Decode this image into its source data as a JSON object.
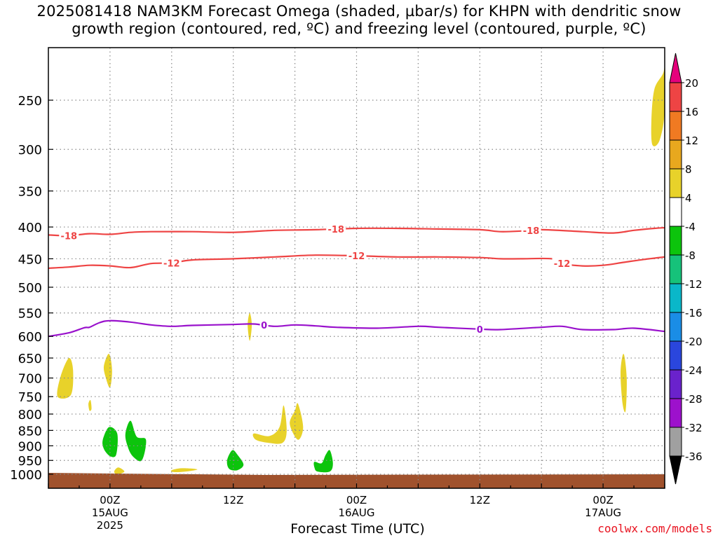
{
  "title": {
    "line1": "2025081418 NAM3KM Forecast Omega (shaded, µbar/s) for KHPN with dendritic snow",
    "line2": "growth region (contoured, red, ºC) and freezing level (contoured, purple, ºC)"
  },
  "credit": "coolwx.com/models",
  "chart_data": {
    "type": "heatmap",
    "xlabel": "Forecast Time (UTC)",
    "x_ticks": [
      {
        "label": "00Z",
        "sub": "15AUG",
        "sub2": "2025",
        "hour": 6
      },
      {
        "label": "12Z",
        "sub": "",
        "sub2": "",
        "hour": 18
      },
      {
        "label": "00Z",
        "sub": "16AUG",
        "sub2": "",
        "hour": 30
      },
      {
        "label": "12Z",
        "sub": "",
        "sub2": "",
        "hour": 42
      },
      {
        "label": "00Z",
        "sub": "17AUG",
        "sub2": "",
        "hour": 54
      }
    ],
    "x_range_hours": [
      0,
      60
    ],
    "y_ticks": [
      250,
      300,
      350,
      400,
      450,
      500,
      550,
      600,
      650,
      700,
      750,
      800,
      850,
      900,
      950,
      1000
    ],
    "y_range_hPa": [
      200,
      1030
    ],
    "y_scale": "log-pressure",
    "grid": true,
    "colorbar": {
      "labels": [
        "20",
        "16",
        "12",
        "8",
        "4",
        "-4",
        "-8",
        "-12",
        "-16",
        "-20",
        "-24",
        "-28",
        "-32",
        "-36"
      ],
      "colors": [
        "#ee4444",
        "#f07a22",
        "#e8a81e",
        "#e8d22a",
        "#ffffff",
        "#0cc40c",
        "#16c27a",
        "#0ab7c9",
        "#1a8de6",
        "#2a46dd",
        "#6a22cc",
        "#9d11cc",
        "#a0a0a0"
      ],
      "top_color": "#e5007c",
      "bottom_color": "#000000"
    },
    "contours": [
      {
        "name": "-18",
        "color": "#ee4444",
        "label": "-18",
        "points": [
          [
            0,
            412
          ],
          [
            2,
            413
          ],
          [
            4,
            410
          ],
          [
            6,
            411
          ],
          [
            8,
            408
          ],
          [
            10,
            407
          ],
          [
            14,
            407
          ],
          [
            18,
            408
          ],
          [
            22,
            405
          ],
          [
            26,
            404
          ],
          [
            30,
            402
          ],
          [
            34,
            402
          ],
          [
            38,
            403
          ],
          [
            42,
            404
          ],
          [
            44,
            407
          ],
          [
            46,
            406
          ],
          [
            48,
            404
          ],
          [
            52,
            407
          ],
          [
            55,
            409
          ],
          [
            57,
            405
          ],
          [
            59,
            402
          ],
          [
            60,
            401
          ]
        ],
        "label_hours": [
          2,
          28,
          47
        ]
      },
      {
        "name": "-12",
        "color": "#ee4444",
        "label": "-12",
        "points": [
          [
            0,
            466
          ],
          [
            2,
            464
          ],
          [
            4,
            461
          ],
          [
            6,
            462
          ],
          [
            8,
            465
          ],
          [
            10,
            458
          ],
          [
            12,
            457
          ],
          [
            14,
            452
          ],
          [
            18,
            450
          ],
          [
            22,
            447
          ],
          [
            26,
            444
          ],
          [
            30,
            445
          ],
          [
            34,
            447
          ],
          [
            38,
            447
          ],
          [
            42,
            448
          ],
          [
            44,
            450
          ],
          [
            46,
            450
          ],
          [
            49,
            450
          ],
          [
            50,
            458
          ],
          [
            52,
            462
          ],
          [
            54,
            461
          ],
          [
            56,
            456
          ],
          [
            58,
            451
          ],
          [
            60,
            447
          ]
        ],
        "label_hours": [
          12,
          30,
          50
        ]
      },
      {
        "name": "0",
        "color": "#9911cc",
        "label": "0",
        "points": [
          [
            0,
            600
          ],
          [
            2,
            592
          ],
          [
            3.5,
            581
          ],
          [
            4,
            580
          ],
          [
            5,
            570
          ],
          [
            6,
            566
          ],
          [
            8,
            569
          ],
          [
            10,
            575
          ],
          [
            12,
            578
          ],
          [
            14,
            576
          ],
          [
            18,
            574
          ],
          [
            20,
            573
          ],
          [
            22,
            578
          ],
          [
            24,
            575
          ],
          [
            26,
            577
          ],
          [
            28,
            580
          ],
          [
            32,
            582
          ],
          [
            36,
            578
          ],
          [
            38,
            580
          ],
          [
            42,
            584
          ],
          [
            44,
            585
          ],
          [
            48,
            580
          ],
          [
            50,
            578
          ],
          [
            52,
            585
          ],
          [
            55,
            585
          ],
          [
            57,
            582
          ],
          [
            60,
            589
          ]
        ],
        "label_hours": [
          21,
          42
        ]
      }
    ],
    "omega_blobs": [
      {
        "value": 5,
        "color": "#e8d22a",
        "points": [
          [
            0.9,
            750
          ],
          [
            1.2,
            695
          ],
          [
            2.0,
            650
          ],
          [
            2.4,
            680
          ],
          [
            2.2,
            745
          ]
        ]
      },
      {
        "value": 5,
        "color": "#e8d22a",
        "points": [
          [
            5.4,
            670
          ],
          [
            5.9,
            640
          ],
          [
            6.2,
            680
          ],
          [
            6.0,
            725
          ],
          [
            5.6,
            700
          ]
        ]
      },
      {
        "value": 5,
        "color": "#e8d22a",
        "points": [
          [
            3.9,
            770
          ],
          [
            4.1,
            760
          ],
          [
            4.2,
            785
          ],
          [
            4.0,
            790
          ]
        ]
      },
      {
        "value": 5,
        "color": "#e8d22a",
        "points": [
          [
            6.4,
            990
          ],
          [
            6.8,
            975
          ],
          [
            7.4,
            990
          ],
          [
            6.7,
            1000
          ]
        ]
      },
      {
        "value": 5,
        "color": "#e8d22a",
        "points": [
          [
            12.0,
            985
          ],
          [
            13.0,
            978
          ],
          [
            14.5,
            982
          ],
          [
            13.4,
            990
          ],
          [
            12.2,
            992
          ]
        ]
      },
      {
        "value": 5,
        "color": "#e8d22a",
        "points": [
          [
            19.4,
            575
          ],
          [
            19.6,
            550
          ],
          [
            19.8,
            575
          ],
          [
            19.6,
            610
          ]
        ]
      },
      {
        "value": 5,
        "color": "#e8d22a",
        "points": [
          [
            20.0,
            860
          ],
          [
            21.5,
            868
          ],
          [
            22.5,
            840
          ],
          [
            22.9,
            775
          ],
          [
            23.2,
            850
          ],
          [
            22.8,
            890
          ],
          [
            21.4,
            890
          ],
          [
            20.2,
            880
          ]
        ]
      },
      {
        "value": 5,
        "color": "#e8d22a",
        "points": [
          [
            23.5,
            830
          ],
          [
            24.0,
            790
          ],
          [
            24.3,
            770
          ],
          [
            24.8,
            840
          ],
          [
            24.3,
            880
          ]
        ]
      },
      {
        "value": 5,
        "color": "#e8d22a",
        "points": [
          [
            58.7,
            270
          ],
          [
            59.0,
            240
          ],
          [
            59.9,
            225
          ],
          [
            60,
            210
          ],
          [
            60,
            260
          ],
          [
            59.5,
            290
          ],
          [
            58.8,
            295
          ]
        ]
      },
      {
        "value": 5,
        "color": "#e8d22a",
        "points": [
          [
            55.7,
            685
          ],
          [
            56.0,
            640
          ],
          [
            56.3,
            700
          ],
          [
            56.2,
            790
          ],
          [
            55.9,
            770
          ]
        ]
      },
      {
        "value": -6,
        "color": "#0cc40c",
        "points": [
          [
            5.3,
            880
          ],
          [
            5.9,
            840
          ],
          [
            6.7,
            860
          ],
          [
            6.6,
            930
          ],
          [
            6.0,
            935
          ],
          [
            5.4,
            910
          ]
        ]
      },
      {
        "value": -6,
        "color": "#0cc40c",
        "points": [
          [
            7.5,
            860
          ],
          [
            8.0,
            820
          ],
          [
            8.6,
            870
          ],
          [
            9.5,
            880
          ],
          [
            9.1,
            950
          ],
          [
            8.2,
            935
          ],
          [
            7.7,
            900
          ]
        ]
      },
      {
        "value": -6,
        "color": "#0cc40c",
        "points": [
          [
            17.4,
            950
          ],
          [
            17.9,
            915
          ],
          [
            18.4,
            930
          ],
          [
            19.0,
            965
          ],
          [
            18.4,
            985
          ],
          [
            17.6,
            980
          ]
        ]
      },
      {
        "value": -6,
        "color": "#0cc40c",
        "points": [
          [
            25.9,
            955
          ],
          [
            26.6,
            960
          ],
          [
            27.0,
            930
          ],
          [
            27.4,
            915
          ],
          [
            27.7,
            960
          ],
          [
            27.4,
            990
          ],
          [
            26.2,
            990
          ],
          [
            25.9,
            975
          ]
        ]
      }
    ],
    "terrain": {
      "color": "#a0522d",
      "top_hPa": 1000
    }
  }
}
